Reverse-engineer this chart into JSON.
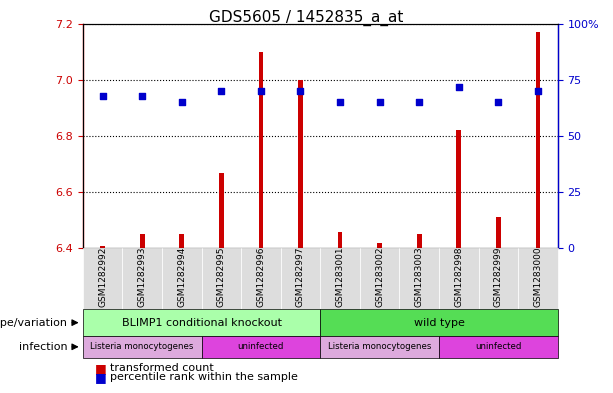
{
  "title": "GDS5605 / 1452835_a_at",
  "samples": [
    "GSM1282992",
    "GSM1282993",
    "GSM1282994",
    "GSM1282995",
    "GSM1282996",
    "GSM1282997",
    "GSM1283001",
    "GSM1283002",
    "GSM1283003",
    "GSM1282998",
    "GSM1282999",
    "GSM1283000"
  ],
  "transformed_counts": [
    6.41,
    6.45,
    6.45,
    6.67,
    7.1,
    7.0,
    6.46,
    6.42,
    6.45,
    6.82,
    6.51,
    7.17
  ],
  "percentile_ranks": [
    68,
    68,
    65,
    70,
    70,
    70,
    65,
    65,
    65,
    72,
    65,
    70
  ],
  "ylim_left": [
    6.4,
    7.2
  ],
  "ylim_right": [
    0,
    100
  ],
  "yticks_left": [
    6.4,
    6.6,
    6.8,
    7.0,
    7.2
  ],
  "yticks_right": [
    0,
    25,
    50,
    75,
    100
  ],
  "bar_color": "#cc0000",
  "dot_color": "#0000cc",
  "grid_color": "#000000",
  "bg_color": "#ffffff",
  "plot_bg": "#ffffff",
  "genotype_groups": [
    {
      "label": "BLIMP1 conditional knockout",
      "start": 0,
      "end": 6,
      "color": "#aaffaa"
    },
    {
      "label": "wild type",
      "start": 6,
      "end": 12,
      "color": "#55dd55"
    }
  ],
  "infection_groups": [
    {
      "label": "Listeria monocytogenes",
      "start": 0,
      "end": 3,
      "color": "#ddaadd"
    },
    {
      "label": "uninfected",
      "start": 3,
      "end": 6,
      "color": "#dd44dd"
    },
    {
      "label": "Listeria monocytogenes",
      "start": 6,
      "end": 9,
      "color": "#ddaadd"
    },
    {
      "label": "uninfected",
      "start": 9,
      "end": 12,
      "color": "#dd44dd"
    }
  ],
  "legend_items": [
    {
      "label": "transformed count",
      "color": "#cc0000"
    },
    {
      "label": "percentile rank within the sample",
      "color": "#0000cc"
    }
  ],
  "left_label_color": "#cc0000",
  "right_label_color": "#0000cc",
  "annotation_genotype": "genotype/variation",
  "annotation_infection": "infection",
  "sample_box_color": "#dddddd",
  "stem_linewidth": 2.5
}
